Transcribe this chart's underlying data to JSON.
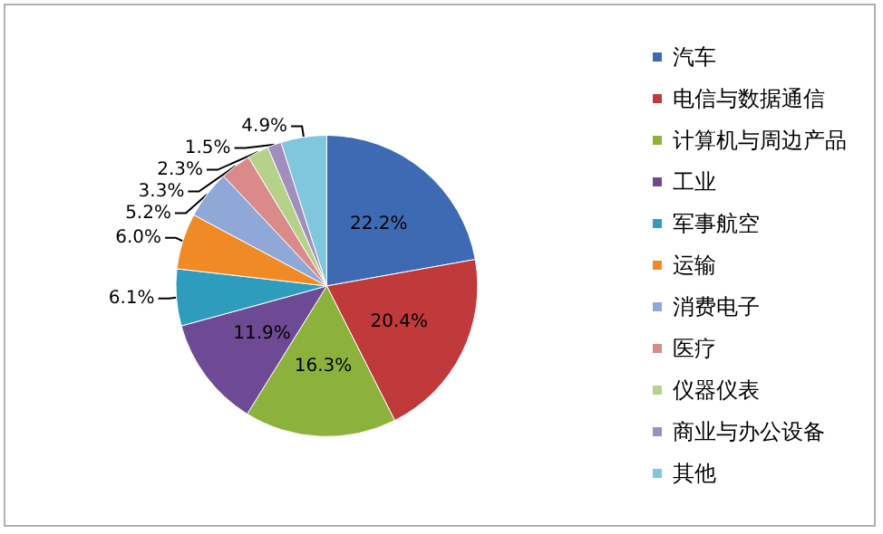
{
  "chart_data": {
    "type": "pie",
    "categories": [
      "汽车",
      "电信与数据通信",
      "计算机与周边产品",
      "工业",
      "军事航空",
      "运输",
      "消费电子",
      "医疗",
      "仪器仪表",
      "商业与办公设备",
      "其他"
    ],
    "values": [
      22.2,
      20.4,
      16.3,
      11.9,
      6.1,
      6.0,
      5.2,
      3.3,
      2.3,
      1.5,
      4.9
    ],
    "colors": [
      "#3d6ab3",
      "#c0393b",
      "#8db23c",
      "#6e4a94",
      "#2e9dbd",
      "#f08a24",
      "#8fa8d8",
      "#d98a89",
      "#b5d18a",
      "#a08ebf",
      "#80c6dd"
    ],
    "value_labels": [
      "22.2%",
      "20.4%",
      "16.3%",
      "11.9%",
      "6.1%",
      "6.0%",
      "5.2%",
      "3.3%",
      "2.3%",
      "1.5%",
      "4.9%"
    ],
    "legend": "right"
  }
}
